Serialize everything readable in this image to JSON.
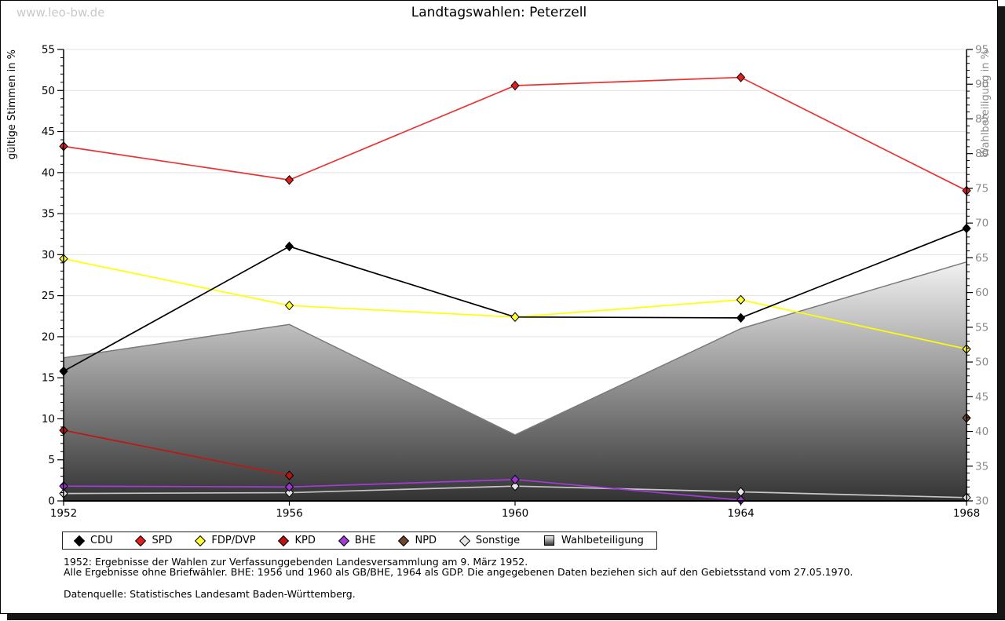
{
  "watermark": "www.leo-bw.de",
  "title": "Landtagswahlen: Peterzell",
  "legend": {
    "items": [
      {
        "label": "CDU",
        "color": "#000000",
        "type": "diamond"
      },
      {
        "label": "SPD",
        "color": "#e41e1e",
        "type": "diamond"
      },
      {
        "label": "FDP/DVP",
        "color": "#ffff33",
        "type": "diamond"
      },
      {
        "label": "KPD",
        "color": "#b81414",
        "type": "diamond"
      },
      {
        "label": "BHE",
        "color": "#a13cd8",
        "type": "diamond"
      },
      {
        "label": "NPD",
        "color": "#71452b",
        "type": "diamond"
      },
      {
        "label": "Sonstige",
        "color": "#e6e6e6",
        "type": "diamond"
      },
      {
        "label": "Wahlbeteiligung",
        "color": "gradient-gray",
        "type": "area-swatch"
      }
    ]
  },
  "footnotes": {
    "line1": "1952: Ergebnisse der Wahlen zur Verfassunggebenden Landesversammlung am 9. März 1952.",
    "line2": "Alle Ergebnisse ohne Briefwähler. BHE: 1956 und 1960 als GB/BHE, 1964 als GDP. Die angegebenen Daten beziehen sich auf den Gebietsstand vom 27.05.1970.",
    "source": "Datenquelle: Statistisches Landesamt Baden-Württemberg."
  },
  "chart_data": {
    "type": "line",
    "title": "Landtagswahlen: Peterzell",
    "x": [
      "1952",
      "1956",
      "1960",
      "1964",
      "1968"
    ],
    "left_axis": {
      "label": "gültige Stimmen in %",
      "min": 0,
      "max": 55,
      "ticks": [
        0,
        5,
        10,
        15,
        20,
        25,
        30,
        35,
        40,
        45,
        50,
        55
      ],
      "minor_step": 1,
      "grid": [
        5,
        10,
        15,
        20,
        25,
        30,
        35,
        40,
        45,
        50,
        55
      ]
    },
    "right_axis": {
      "label": "Wahlbeteiligung in %",
      "min": 30,
      "max": 95,
      "ticks": [
        30,
        35,
        40,
        45,
        50,
        55,
        60,
        65,
        70,
        75,
        80,
        85,
        90,
        95
      ],
      "minor_step": 1,
      "label_color": "#8c8c8c"
    },
    "series": [
      {
        "name": "CDU",
        "axis": "left",
        "color": "#000000",
        "marker": "#000000",
        "values": [
          15.8,
          31.0,
          22.4,
          22.3,
          33.2
        ]
      },
      {
        "name": "SPD",
        "axis": "left",
        "color": "#ea3232",
        "marker": "#e41e1e",
        "values": [
          43.2,
          39.1,
          50.6,
          51.6,
          37.8
        ]
      },
      {
        "name": "FDP/DVP",
        "axis": "left",
        "color": "#ffff00",
        "marker": "#ffff33",
        "values": [
          29.5,
          23.8,
          22.4,
          24.5,
          18.5
        ]
      },
      {
        "name": "KPD",
        "axis": "left",
        "color": "#c11515",
        "marker": "#b81414",
        "values": [
          8.6,
          3.1,
          null,
          null,
          null
        ]
      },
      {
        "name": "BHE",
        "axis": "left",
        "color": "#a13cd8",
        "marker": "#9b35d2",
        "values": [
          1.8,
          1.7,
          2.6,
          0.1,
          null
        ]
      },
      {
        "name": "NPD",
        "axis": "left",
        "color": "#71452b",
        "marker": "#71452b",
        "values": [
          null,
          null,
          null,
          null,
          10.1
        ]
      },
      {
        "name": "Sonstige",
        "axis": "left",
        "color": "#c6c6c6",
        "marker": "#e6e6e6",
        "values": [
          0.9,
          1.0,
          1.8,
          1.1,
          0.4
        ]
      }
    ],
    "area_series": {
      "name": "Wahlbeteiligung",
      "axis": "right",
      "values": [
        50.6,
        55.4,
        39.5,
        54.8,
        64.4
      ],
      "edge_color": "#7a7a7a",
      "fill_top": "#f2f2f2",
      "fill_bottom": "#333333"
    },
    "layout": {
      "grid": true,
      "legend_position": "bottom",
      "line_draw_order": [
        "Sonstige",
        "BHE",
        "KPD",
        "FDP/DVP",
        "CDU",
        "SPD"
      ],
      "marker_draw_order": [
        "Sonstige",
        "BHE",
        "KPD",
        "NPD",
        "CDU",
        "FDP/DVP",
        "SPD"
      ]
    }
  }
}
